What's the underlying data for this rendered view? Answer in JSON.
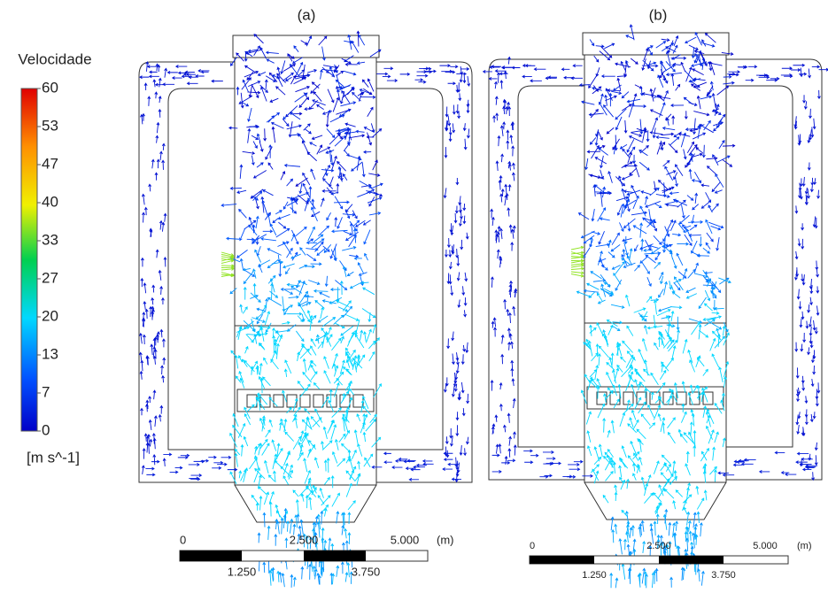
{
  "colorbar": {
    "title": "Velocidade",
    "lim": [
      0,
      60
    ],
    "ticks": [
      {
        "value": 60,
        "label": "60"
      },
      {
        "value": 53.333,
        "label": "53"
      },
      {
        "value": 46.667,
        "label": "47"
      },
      {
        "value": 40,
        "label": "40"
      },
      {
        "value": 33.333,
        "label": "33"
      },
      {
        "value": 26.667,
        "label": "27"
      },
      {
        "value": 20,
        "label": "20"
      },
      {
        "value": 13.333,
        "label": "13"
      },
      {
        "value": 6.667,
        "label": "7"
      },
      {
        "value": 0,
        "label": "0"
      }
    ],
    "unit": "[m s^-1]"
  },
  "panels": [
    {
      "label": "(a)",
      "scale_bar": {
        "labels_top": [
          "0",
          "2.500",
          "5.000"
        ],
        "unit": "(m)",
        "labels_bottom": [
          "1.250",
          "3.750"
        ]
      }
    },
    {
      "label": "(b)",
      "scale_bar": {
        "labels_top": [
          "0",
          "2.500",
          "5.000"
        ],
        "unit": "(m)",
        "labels_bottom": [
          "1.250",
          "3.750"
        ]
      }
    }
  ]
}
